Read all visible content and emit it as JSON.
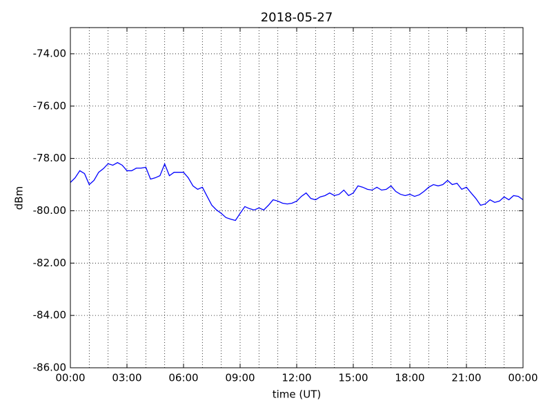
{
  "chart_data": {
    "type": "line",
    "title": "2018-05-27",
    "x_label": "time (UT)",
    "y_label": "dBm",
    "xlim": [
      0,
      24
    ],
    "xticks": [
      {
        "value": 0,
        "label": "00:00"
      },
      {
        "value": 3,
        "label": "03:00"
      },
      {
        "value": 6,
        "label": "06:00"
      },
      {
        "value": 9,
        "label": "09:00"
      },
      {
        "value": 12,
        "label": "12:00"
      },
      {
        "value": 15,
        "label": "15:00"
      },
      {
        "value": 18,
        "label": "18:00"
      },
      {
        "value": 21,
        "label": "21:00"
      },
      {
        "value": 24,
        "label": "00:00"
      }
    ],
    "x_minor_ticks": [
      1,
      2,
      4,
      5,
      7,
      8,
      10,
      11,
      13,
      14,
      16,
      17,
      19,
      20,
      22,
      23
    ],
    "ylim": [
      -86,
      -73
    ],
    "yticks": [
      {
        "value": -86,
        "label": "-86.00"
      },
      {
        "value": -84,
        "label": "-84.00"
      },
      {
        "value": -82,
        "label": "-82.00"
      },
      {
        "value": -80,
        "label": "-80.00"
      },
      {
        "value": -78,
        "label": "-78.00"
      },
      {
        "value": -76,
        "label": "-76.00"
      },
      {
        "value": -74,
        "label": "-74.00"
      }
    ],
    "grid": true,
    "x": [
      0,
      0.25,
      0.5,
      0.75,
      1,
      1.25,
      1.5,
      1.75,
      2,
      2.25,
      2.5,
      2.75,
      3,
      3.25,
      3.5,
      3.75,
      4,
      4.25,
      4.5,
      4.75,
      5,
      5.25,
      5.5,
      5.75,
      6,
      6.25,
      6.5,
      6.75,
      7,
      7.25,
      7.5,
      7.75,
      8,
      8.25,
      8.5,
      8.75,
      9,
      9.25,
      9.5,
      9.75,
      10,
      10.25,
      10.5,
      10.75,
      11,
      11.25,
      11.5,
      11.75,
      12,
      12.25,
      12.5,
      12.75,
      13,
      13.25,
      13.5,
      13.75,
      14,
      14.25,
      14.5,
      14.75,
      15,
      15.25,
      15.5,
      15.75,
      16,
      16.25,
      16.5,
      16.75,
      17,
      17.25,
      17.5,
      17.75,
      18,
      18.25,
      18.5,
      18.75,
      19,
      19.25,
      19.5,
      19.75,
      20,
      20.25,
      20.5,
      20.75,
      21,
      21.25,
      21.5,
      21.75,
      22,
      22.25,
      22.5,
      22.75,
      23,
      23.25,
      23.5,
      23.75,
      24
    ],
    "series": [
      {
        "name": "dBm",
        "color": "#0000ff",
        "values": [
          -78.92,
          -78.74,
          -78.47,
          -78.58,
          -79.0,
          -78.84,
          -78.53,
          -78.39,
          -78.2,
          -78.26,
          -78.16,
          -78.26,
          -78.47,
          -78.47,
          -78.37,
          -78.37,
          -78.34,
          -78.79,
          -78.74,
          -78.66,
          -78.21,
          -78.66,
          -78.53,
          -78.53,
          -78.53,
          -78.74,
          -79.05,
          -79.18,
          -79.1,
          -79.45,
          -79.79,
          -79.97,
          -80.1,
          -80.26,
          -80.32,
          -80.37,
          -80.1,
          -79.84,
          -79.92,
          -79.97,
          -79.89,
          -79.97,
          -79.79,
          -79.58,
          -79.63,
          -79.71,
          -79.74,
          -79.71,
          -79.63,
          -79.45,
          -79.32,
          -79.53,
          -79.58,
          -79.47,
          -79.42,
          -79.32,
          -79.42,
          -79.37,
          -79.21,
          -79.42,
          -79.32,
          -79.05,
          -79.1,
          -79.18,
          -79.21,
          -79.1,
          -79.21,
          -79.18,
          -79.05,
          -79.26,
          -79.37,
          -79.42,
          -79.37,
          -79.45,
          -79.39,
          -79.26,
          -79.1,
          -79.0,
          -79.05,
          -79.0,
          -78.84,
          -79.0,
          -78.95,
          -79.18,
          -79.1,
          -79.32,
          -79.53,
          -79.79,
          -79.74,
          -79.58,
          -79.68,
          -79.63,
          -79.47,
          -79.58,
          -79.42,
          -79.45,
          -79.58
        ]
      }
    ]
  }
}
